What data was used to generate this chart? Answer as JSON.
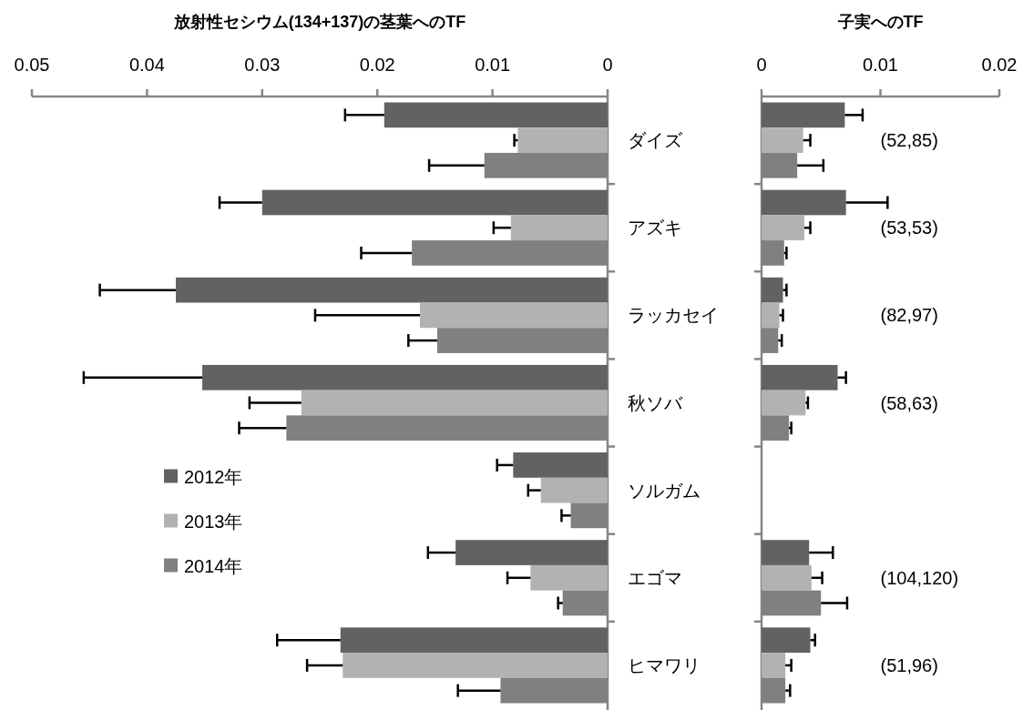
{
  "chart_data": [
    {
      "type": "bar",
      "orientation": "horizontal",
      "title": "放射性セシウム(134+137)の茎葉へのTF",
      "categories": [
        "ダイズ",
        "アズキ",
        "ラッカセイ",
        "秋ソバ",
        "ソルガム",
        "エゴマ",
        "ヒマワリ"
      ],
      "series": [
        {
          "name": "2012年",
          "color": "#626262",
          "values": [
            0.0194,
            0.03,
            0.0375,
            0.0352,
            0.0082,
            0.0132,
            0.0232
          ],
          "errors": [
            [
              0.0194,
              0.0228
            ],
            [
              0.03,
              0.0337
            ],
            [
              0.0375,
              0.0441
            ],
            [
              0.0352,
              0.0455
            ],
            [
              0.0082,
              0.0096
            ],
            [
              0.0132,
              0.0156
            ],
            [
              0.0232,
              0.0287
            ]
          ]
        },
        {
          "name": "2013年",
          "color": "#b2b2b2",
          "values": [
            0.0078,
            0.0084,
            0.0163,
            0.0266,
            0.0058,
            0.0067,
            0.023
          ],
          "errors": [
            [
              0.0078,
              0.0081
            ],
            [
              0.0084,
              0.0099
            ],
            [
              0.0163,
              0.0254
            ],
            [
              0.0266,
              0.0311
            ],
            [
              0.0058,
              0.0069
            ],
            [
              0.0067,
              0.0087
            ],
            [
              0.023,
              0.0261
            ]
          ]
        },
        {
          "name": "2014年",
          "color": "#808080",
          "values": [
            0.0107,
            0.017,
            0.0148,
            0.0279,
            0.0032,
            0.0039,
            0.0093
          ],
          "errors": [
            [
              0.0107,
              0.0155
            ],
            [
              0.017,
              0.0214
            ],
            [
              0.0148,
              0.0173
            ],
            [
              0.0279,
              0.032
            ],
            [
              0.0032,
              0.004
            ],
            [
              0.0039,
              0.0043
            ],
            [
              0.0093,
              0.013
            ]
          ]
        }
      ],
      "xlim": [
        0.05,
        0
      ],
      "xticks": [
        0.05,
        0.04,
        0.03,
        0.02,
        0.01,
        0
      ],
      "legend": "left"
    },
    {
      "type": "bar",
      "orientation": "horizontal",
      "title": "子実へのTF",
      "categories": [
        null,
        null,
        null,
        null,
        null,
        null,
        null
      ],
      "series": [
        {
          "color": "#626262",
          "values": [
            0.007,
            0.0071,
            0.0018,
            0.0064,
            null,
            0.004,
            0.0041
          ],
          "errors": [
            [
              0.007,
              0.0085
            ],
            [
              0.0071,
              0.0106
            ],
            [
              0.0018,
              0.0021
            ],
            [
              0.0064,
              0.0071
            ],
            null,
            [
              0.004,
              0.006
            ],
            [
              0.0041,
              0.0045
            ]
          ]
        },
        {
          "color": "#b2b2b2",
          "values": [
            0.0035,
            0.0036,
            0.0015,
            0.0037,
            null,
            0.0042,
            0.002
          ],
          "errors": [
            [
              0.0035,
              0.0041
            ],
            [
              0.0036,
              0.0041
            ],
            [
              0.0015,
              0.0018
            ],
            [
              0.0037,
              0.0039
            ],
            null,
            [
              0.0042,
              0.0051
            ],
            [
              0.002,
              0.0025
            ]
          ]
        },
        {
          "color": "#808080",
          "values": [
            0.003,
            0.0019,
            0.0014,
            0.0023,
            null,
            0.005,
            0.002
          ],
          "errors": [
            [
              0.003,
              0.0052
            ],
            [
              0.0019,
              0.0021
            ],
            [
              0.0014,
              0.0017
            ],
            [
              0.0023,
              0.0025
            ],
            null,
            [
              0.005,
              0.0072
            ],
            [
              0.002,
              0.0024
            ]
          ]
        }
      ],
      "xlim": [
        0,
        0.02
      ],
      "xticks": [
        0,
        0.01,
        0.02
      ],
      "tick_labels": "x",
      "annotations": [
        "(52,85)",
        "(53,53)",
        "(82,97)",
        "(58,63)",
        "(104,120)",
        "(51,96)"
      ]
    }
  ]
}
